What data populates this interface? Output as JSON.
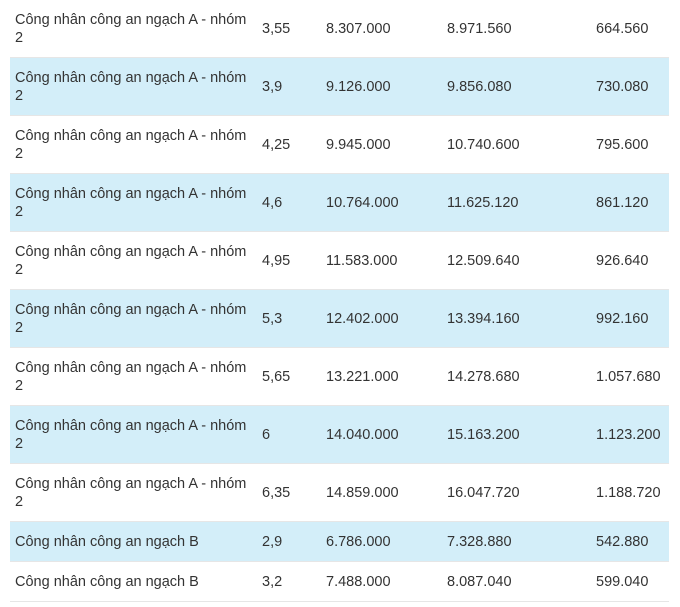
{
  "rows": [
    {
      "name": "Công nhân công an ngạch A - nhóm 2",
      "coef": "3,55",
      "col1": "8.307.000",
      "col2": "8.971.560",
      "col3": "664.560"
    },
    {
      "name": "Công nhân công an ngạch A - nhóm 2",
      "coef": "3,9",
      "col1": "9.126.000",
      "col2": "9.856.080",
      "col3": "730.080"
    },
    {
      "name": "Công nhân công an ngạch A - nhóm 2",
      "coef": "4,25",
      "col1": "9.945.000",
      "col2": "10.740.600",
      "col3": "795.600"
    },
    {
      "name": "Công nhân công an ngạch A - nhóm 2",
      "coef": "4,6",
      "col1": "10.764.000",
      "col2": "11.625.120",
      "col3": "861.120"
    },
    {
      "name": "Công nhân công an ngạch A - nhóm 2",
      "coef": "4,95",
      "col1": "11.583.000",
      "col2": "12.509.640",
      "col3": "926.640"
    },
    {
      "name": "Công nhân công an ngạch A - nhóm 2",
      "coef": "5,3",
      "col1": "12.402.000",
      "col2": "13.394.160",
      "col3": "992.160"
    },
    {
      "name": "Công nhân công an ngạch A - nhóm 2",
      "coef": "5,65",
      "col1": "13.221.000",
      "col2": "14.278.680",
      "col3": "1.057.680"
    },
    {
      "name": "Công nhân công an ngạch A - nhóm 2",
      "coef": "6",
      "col1": "14.040.000",
      "col2": "15.163.200",
      "col3": "1.123.200"
    },
    {
      "name": "Công nhân công an ngạch A - nhóm 2",
      "coef": "6,35",
      "col1": "14.859.000",
      "col2": "16.047.720",
      "col3": "1.188.720"
    },
    {
      "name": "Công nhân công an ngạch B",
      "coef": "2,9",
      "col1": "6.786.000",
      "col2": "7.328.880",
      "col3": "542.880"
    },
    {
      "name": "Công nhân công an ngạch B",
      "coef": "3,2",
      "col1": "7.488.000",
      "col2": "8.087.040",
      "col3": "599.040"
    }
  ],
  "colors": {
    "shaded_row": "#d3eef9",
    "text": "#333333"
  }
}
